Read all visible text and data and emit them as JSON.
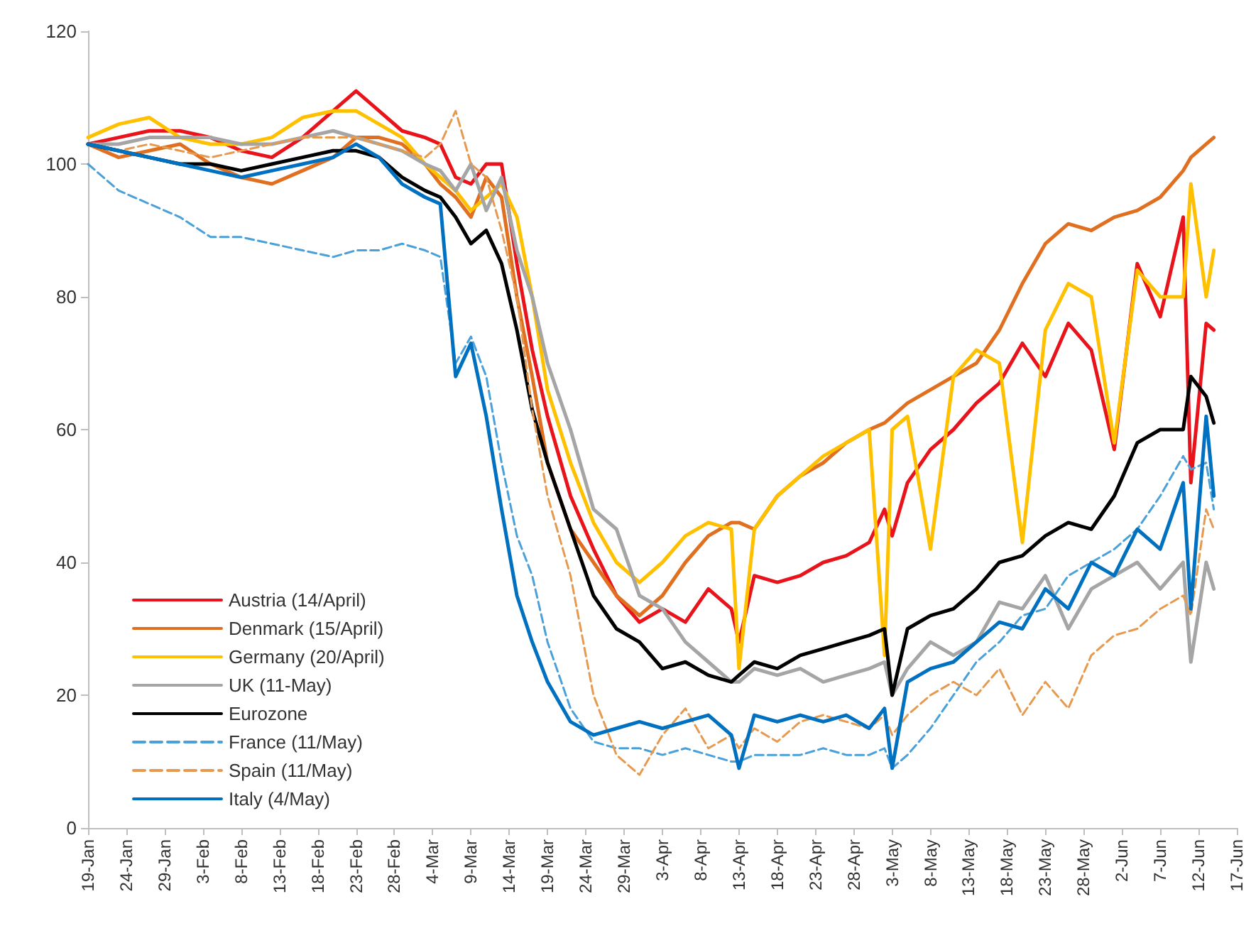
{
  "chart_data": {
    "type": "line",
    "x": [
      "--01-19",
      "--01-23",
      "--01-27",
      "--01-31",
      "--02-04",
      "--02-08",
      "--02-12",
      "--02-16",
      "--02-20",
      "--02-23",
      "--02-26",
      "--02-29",
      "--03-03",
      "--03-05",
      "--03-07",
      "--03-09",
      "--03-11",
      "--03-13",
      "--03-15",
      "--03-17",
      "--03-19",
      "--03-22",
      "--03-25",
      "--03-28",
      "--03-31",
      "--04-03",
      "--04-06",
      "--04-09",
      "--04-12",
      "--04-13",
      "--04-15",
      "--04-18",
      "--04-21",
      "--04-24",
      "--04-27",
      "--04-30",
      "--05-02",
      "--05-03",
      "--05-05",
      "--05-08",
      "--05-11",
      "--05-14",
      "--05-17",
      "--05-20",
      "--05-23",
      "--05-26",
      "--05-29",
      "--06-01",
      "--06-04",
      "--06-07",
      "--06-10",
      "--06-11",
      "--06-13",
      "--06-14"
    ],
    "series": [
      {
        "name": "Austria (14/April)",
        "color": "#e8131b",
        "values": [
          103,
          104,
          105,
          105,
          104,
          102,
          101,
          104,
          108,
          111,
          108,
          105,
          104,
          103,
          98,
          97,
          100,
          100,
          85,
          72,
          62,
          50,
          42,
          35,
          31,
          33,
          31,
          36,
          33,
          28,
          38,
          37,
          38,
          40,
          41,
          43,
          48,
          44,
          52,
          57,
          60,
          64,
          67,
          73,
          68,
          76,
          72,
          57,
          85,
          77,
          92,
          52,
          76,
          75
        ]
      },
      {
        "name": "Denmark (15/April)",
        "color": "#e07020",
        "values": [
          103,
          101,
          102,
          103,
          100,
          98,
          97,
          99,
          101,
          104,
          104,
          103,
          100,
          97,
          95,
          92,
          98,
          95,
          80,
          68,
          55,
          45,
          40,
          35,
          32,
          35,
          40,
          44,
          46,
          46,
          45,
          50,
          53,
          55,
          58,
          60,
          61,
          62,
          64,
          66,
          68,
          70,
          75,
          82,
          88,
          91,
          90,
          92,
          93,
          95,
          99,
          101,
          103,
          104
        ]
      },
      {
        "name": "Germany (20/April)",
        "color": "#ffc000",
        "values": [
          104,
          106,
          107,
          104,
          103,
          103,
          104,
          107,
          108,
          108,
          106,
          104,
          100,
          98,
          96,
          93,
          95,
          97,
          92,
          80,
          66,
          55,
          46,
          40,
          37,
          40,
          44,
          46,
          45,
          24,
          45,
          50,
          53,
          56,
          58,
          60,
          26,
          60,
          62,
          42,
          68,
          72,
          70,
          43,
          75,
          82,
          80,
          58,
          84,
          80,
          80,
          97,
          80,
          87
        ]
      },
      {
        "name": "UK (11-May)",
        "color": "#a5a5a5",
        "values": [
          103,
          103,
          104,
          104,
          104,
          103,
          103,
          104,
          105,
          104,
          103,
          102,
          100,
          99,
          96,
          100,
          93,
          98,
          87,
          80,
          70,
          60,
          48,
          45,
          35,
          33,
          28,
          25,
          22,
          22,
          24,
          23,
          24,
          22,
          23,
          24,
          25,
          20,
          24,
          28,
          26,
          28,
          34,
          33,
          38,
          30,
          36,
          38,
          40,
          36,
          40,
          25,
          40,
          36
        ]
      },
      {
        "name": "Eurozone",
        "color": "#000000",
        "values": [
          103,
          102,
          101,
          100,
          100,
          99,
          100,
          101,
          102,
          102,
          101,
          98,
          96,
          95,
          92,
          88,
          90,
          85,
          75,
          63,
          55,
          45,
          35,
          30,
          28,
          24,
          25,
          23,
          22,
          23,
          25,
          24,
          26,
          27,
          28,
          29,
          30,
          20,
          30,
          32,
          33,
          36,
          40,
          41,
          44,
          46,
          45,
          50,
          58,
          60,
          60,
          68,
          65,
          61
        ]
      },
      {
        "name": "France (11/May)",
        "color": "#4aa0d8",
        "line_style": "dashed",
        "values": [
          100,
          96,
          94,
          92,
          89,
          89,
          88,
          87,
          86,
          87,
          87,
          88,
          87,
          86,
          70,
          74,
          68,
          55,
          44,
          38,
          28,
          18,
          13,
          12,
          12,
          11,
          12,
          11,
          10,
          10,
          11,
          11,
          11,
          12,
          11,
          11,
          12,
          9,
          11,
          15,
          20,
          25,
          28,
          32,
          33,
          38,
          40,
          42,
          45,
          50,
          56,
          54,
          55,
          48
        ]
      },
      {
        "name": "Spain (11/May)",
        "color": "#e69a50",
        "line_style": "dashed",
        "values": [
          103,
          102,
          103,
          102,
          101,
          102,
          103,
          104,
          104,
          104,
          103,
          102,
          101,
          103,
          108,
          100,
          98,
          90,
          80,
          63,
          50,
          38,
          20,
          11,
          8,
          14,
          18,
          12,
          14,
          12,
          15,
          13,
          16,
          17,
          16,
          15,
          17,
          14,
          17,
          20,
          22,
          20,
          24,
          17,
          22,
          18,
          26,
          29,
          30,
          33,
          35,
          32,
          48,
          45
        ]
      },
      {
        "name": "Italy (4/May)",
        "color": "#0070c0",
        "values": [
          103,
          102,
          101,
          100,
          99,
          98,
          99,
          100,
          101,
          103,
          101,
          97,
          95,
          94,
          68,
          73,
          62,
          48,
          35,
          28,
          22,
          16,
          14,
          15,
          16,
          15,
          16,
          17,
          14,
          9,
          17,
          16,
          17,
          16,
          17,
          15,
          18,
          9,
          22,
          24,
          25,
          28,
          31,
          30,
          36,
          33,
          40,
          38,
          45,
          42,
          52,
          33,
          62,
          50
        ]
      }
    ],
    "line_style": "solid",
    "marker": "none",
    "grid": false,
    "legend": "bottom left",
    "ylim": [
      0,
      120
    ],
    "yticks": [
      0,
      20,
      40,
      60,
      80,
      100,
      120
    ],
    "xlim": [
      "--01-19",
      "--06-17"
    ],
    "xticks": [
      {
        "value": "--01-19",
        "label": "19-Jan"
      },
      {
        "value": "--01-24",
        "label": "24-Jan"
      },
      {
        "value": "--01-29",
        "label": "29-Jan"
      },
      {
        "value": "--02-03",
        "label": "3-Feb"
      },
      {
        "value": "--02-08",
        "label": "8-Feb"
      },
      {
        "value": "--02-13",
        "label": "13-Feb"
      },
      {
        "value": "--02-18",
        "label": "18-Feb"
      },
      {
        "value": "--02-23",
        "label": "23-Feb"
      },
      {
        "value": "--02-28",
        "label": "28-Feb"
      },
      {
        "value": "--03-04",
        "label": "4-Mar"
      },
      {
        "value": "--03-09",
        "label": "9-Mar"
      },
      {
        "value": "--03-14",
        "label": "14-Mar"
      },
      {
        "value": "--03-19",
        "label": "19-Mar"
      },
      {
        "value": "--03-24",
        "label": "24-Mar"
      },
      {
        "value": "--03-29",
        "label": "29-Mar"
      },
      {
        "value": "--04-03",
        "label": "3-Apr"
      },
      {
        "value": "--04-08",
        "label": "8-Apr"
      },
      {
        "value": "--04-13",
        "label": "13-Apr"
      },
      {
        "value": "--04-18",
        "label": "18-Apr"
      },
      {
        "value": "--04-23",
        "label": "23-Apr"
      },
      {
        "value": "--04-28",
        "label": "28-Apr"
      },
      {
        "value": "--05-03",
        "label": "3-May"
      },
      {
        "value": "--05-08",
        "label": "8-May"
      },
      {
        "value": "--05-13",
        "label": "13-May"
      },
      {
        "value": "--05-18",
        "label": "18-May"
      },
      {
        "value": "--05-23",
        "label": "23-May"
      },
      {
        "value": "--05-28",
        "label": "28-May"
      },
      {
        "value": "--06-02",
        "label": "2-Jun"
      },
      {
        "value": "--06-07",
        "label": "7-Jun"
      },
      {
        "value": "--06-12",
        "label": "12-Jun"
      },
      {
        "value": "--06-17",
        "label": "17-Jun"
      }
    ]
  }
}
